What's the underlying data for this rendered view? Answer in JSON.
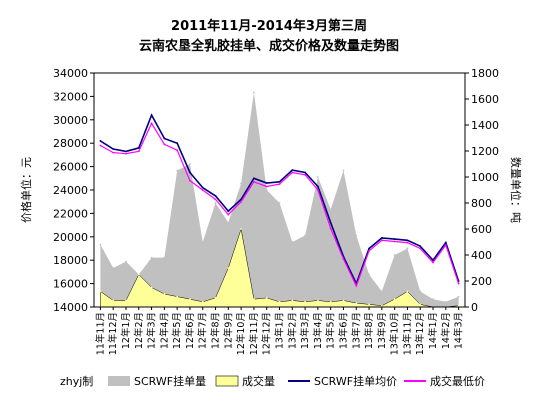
{
  "chart_data": {
    "type": "area",
    "title": "2011年11月-2014年3月第三周",
    "subtitle": "云南农垦全乳胶挂单、成交价格及数量走势图",
    "ylabel_left": "价格单位：元",
    "ylabel_right": "数量单位：吨",
    "credit": "zhyj制",
    "yleft_lim": [
      14000,
      34000
    ],
    "yleft_ticks": [
      "14000",
      "16000",
      "18000",
      "20000",
      "22000",
      "24000",
      "26000",
      "28000",
      "30000",
      "32000",
      "34000"
    ],
    "yright_lim": [
      0,
      1800
    ],
    "yright_ticks": [
      "0",
      "200",
      "400",
      "600",
      "800",
      "1000",
      "1200",
      "1400",
      "1600",
      "1800"
    ],
    "grid": false,
    "legend_position": "bottom",
    "categories": [
      "11年11月",
      "11年12月",
      "12年1月",
      "12年2月",
      "12年3月",
      "12年4月",
      "12年5月",
      "12年6月",
      "12年7月",
      "12年8月",
      "12年9月",
      "12年10月",
      "12年11月",
      "12年12月",
      "13年1月",
      "13年2月",
      "13年3月",
      "13年4月",
      "13年5月",
      "13年6月",
      "13年7月",
      "13年8月",
      "13年9月",
      "13年10月",
      "13年11月",
      "13年12月",
      "14年1月",
      "14年2月",
      "14年3月"
    ],
    "series": [
      {
        "name": "SCRWF挂单量",
        "kind": "area",
        "axis": "right",
        "color": "#c0c0c0",
        "values": [
          480,
          300,
          350,
          250,
          380,
          380,
          1050,
          1100,
          500,
          800,
          650,
          950,
          1650,
          900,
          800,
          500,
          550,
          1000,
          750,
          1050,
          550,
          250,
          120,
          400,
          450,
          120,
          60,
          40,
          80
        ]
      },
      {
        "name": "成交量",
        "kind": "area",
        "axis": "right",
        "color": "#ffff99",
        "values": [
          120,
          50,
          50,
          250,
          150,
          100,
          80,
          60,
          40,
          70,
          300,
          600,
          60,
          70,
          40,
          50,
          40,
          50,
          40,
          50,
          30,
          20,
          10,
          60,
          120,
          20,
          0,
          0,
          10
        ]
      },
      {
        "name": "SCRWF挂单均价",
        "kind": "line",
        "axis": "left",
        "color": "#000080",
        "values": [
          28200,
          27500,
          27300,
          27600,
          30400,
          28400,
          28000,
          25500,
          24200,
          23500,
          22200,
          23200,
          25000,
          24600,
          24700,
          25700,
          25500,
          24300,
          21200,
          18300,
          16000,
          19000,
          19900,
          19800,
          19700,
          19200,
          18000,
          19500,
          16200
        ]
      },
      {
        "name": "成交最低价",
        "kind": "line",
        "axis": "left",
        "color": "#ff00ff",
        "values": [
          27800,
          27200,
          27100,
          27300,
          29700,
          27900,
          27400,
          24800,
          24000,
          23200,
          21900,
          23000,
          24700,
          24300,
          24500,
          25500,
          25300,
          24000,
          20700,
          18100,
          15800,
          18800,
          19700,
          19600,
          19500,
          19000,
          17800,
          19300,
          16000
        ]
      }
    ]
  }
}
